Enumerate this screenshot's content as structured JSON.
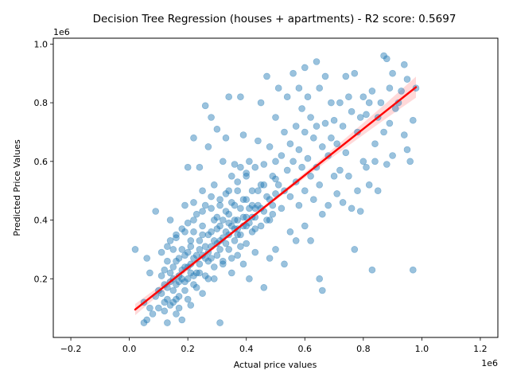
{
  "chart_data": {
    "type": "scatter",
    "title": "Decision Tree Regression (houses + apartments) - R2 score: 0.5697",
    "xlabel": "Actual price values",
    "ylabel": "Predicted Price Values",
    "x_offset_label": "1e6",
    "y_offset_label": "1e6",
    "xlim": [
      -0.26,
      1.26
    ],
    "ylim": [
      0.0,
      1.02
    ],
    "x_scale": 1000000,
    "y_scale": 1000000,
    "xticks": [
      -0.2,
      0.0,
      0.2,
      0.4,
      0.6,
      0.8,
      1.0,
      1.2
    ],
    "xtick_labels": [
      "−0.2",
      "0.0",
      "0.2",
      "0.4",
      "0.6",
      "0.8",
      "1.0",
      "1.2"
    ],
    "yticks": [
      0.2,
      0.4,
      0.6,
      0.8,
      1.0
    ],
    "ytick_labels": [
      "0.2",
      "0.4",
      "0.6",
      "0.8",
      "1.0"
    ],
    "grid": false,
    "point_color": "#1f77b4",
    "point_opacity": 0.45,
    "regression_line": {
      "x": [
        0.02,
        0.98
      ],
      "y": [
        0.095,
        0.853
      ],
      "color": "#ff0000"
    },
    "confidence_band_color": "#ff0000",
    "series": [
      {
        "points": [
          [
            0.02,
            0.3
          ],
          [
            0.05,
            0.12
          ],
          [
            0.05,
            0.05
          ],
          [
            0.06,
            0.27
          ],
          [
            0.06,
            0.06
          ],
          [
            0.07,
            0.22
          ],
          [
            0.07,
            0.1
          ],
          [
            0.08,
            0.08
          ],
          [
            0.09,
            0.43
          ],
          [
            0.09,
            0.14
          ],
          [
            0.1,
            0.16
          ],
          [
            0.1,
            0.1
          ],
          [
            0.11,
            0.29
          ],
          [
            0.11,
            0.21
          ],
          [
            0.12,
            0.23
          ],
          [
            0.12,
            0.12
          ],
          [
            0.13,
            0.05
          ],
          [
            0.13,
            0.26
          ],
          [
            0.13,
            0.17
          ],
          [
            0.14,
            0.4
          ],
          [
            0.14,
            0.33
          ],
          [
            0.14,
            0.19
          ],
          [
            0.15,
            0.3
          ],
          [
            0.15,
            0.12
          ],
          [
            0.15,
            0.24
          ],
          [
            0.16,
            0.35
          ],
          [
            0.16,
            0.18
          ],
          [
            0.16,
            0.08
          ],
          [
            0.17,
            0.27
          ],
          [
            0.17,
            0.14
          ],
          [
            0.17,
            0.21
          ],
          [
            0.18,
            0.37
          ],
          [
            0.18,
            0.3
          ],
          [
            0.18,
            0.06
          ],
          [
            0.19,
            0.45
          ],
          [
            0.19,
            0.24
          ],
          [
            0.19,
            0.16
          ],
          [
            0.2,
            0.58
          ],
          [
            0.2,
            0.39
          ],
          [
            0.2,
            0.29
          ],
          [
            0.2,
            0.2
          ],
          [
            0.21,
            0.33
          ],
          [
            0.21,
            0.11
          ],
          [
            0.21,
            0.25
          ],
          [
            0.22,
            0.68
          ],
          [
            0.22,
            0.46
          ],
          [
            0.22,
            0.36
          ],
          [
            0.22,
            0.18
          ],
          [
            0.23,
            0.28
          ],
          [
            0.23,
            0.42
          ],
          [
            0.24,
            0.58
          ],
          [
            0.24,
            0.22
          ],
          [
            0.24,
            0.33
          ],
          [
            0.25,
            0.5
          ],
          [
            0.25,
            0.38
          ],
          [
            0.25,
            0.15
          ],
          [
            0.26,
            0.79
          ],
          [
            0.26,
            0.45
          ],
          [
            0.26,
            0.27
          ],
          [
            0.27,
            0.35
          ],
          [
            0.27,
            0.65
          ],
          [
            0.27,
            0.2
          ],
          [
            0.28,
            0.75
          ],
          [
            0.28,
            0.48
          ],
          [
            0.28,
            0.31
          ],
          [
            0.29,
            0.4
          ],
          [
            0.29,
            0.24
          ],
          [
            0.29,
            0.52
          ],
          [
            0.3,
            0.71
          ],
          [
            0.3,
            0.37
          ],
          [
            0.3,
            0.28
          ],
          [
            0.31,
            0.45
          ],
          [
            0.31,
            0.05
          ],
          [
            0.31,
            0.33
          ],
          [
            0.32,
            0.6
          ],
          [
            0.32,
            0.4
          ],
          [
            0.32,
            0.26
          ],
          [
            0.33,
            0.68
          ],
          [
            0.33,
            0.49
          ],
          [
            0.33,
            0.36
          ],
          [
            0.34,
            0.82
          ],
          [
            0.34,
            0.3
          ],
          [
            0.34,
            0.42
          ],
          [
            0.35,
            0.55
          ],
          [
            0.35,
            0.38
          ],
          [
            0.35,
            0.22
          ],
          [
            0.36,
            0.59
          ],
          [
            0.36,
            0.45
          ],
          [
            0.36,
            0.33
          ],
          [
            0.37,
            0.5
          ],
          [
            0.37,
            0.28
          ],
          [
            0.37,
            0.4
          ],
          [
            0.38,
            0.82
          ],
          [
            0.38,
            0.58
          ],
          [
            0.38,
            0.35
          ],
          [
            0.39,
            0.69
          ],
          [
            0.39,
            0.47
          ],
          [
            0.39,
            0.25
          ],
          [
            0.4,
            0.55
          ],
          [
            0.4,
            0.41
          ],
          [
            0.4,
            0.32
          ],
          [
            0.41,
            0.6
          ],
          [
            0.41,
            0.44
          ],
          [
            0.41,
            0.2
          ],
          [
            0.42,
            0.5
          ],
          [
            0.42,
            0.36
          ],
          [
            0.43,
            0.58
          ],
          [
            0.43,
            0.41
          ],
          [
            0.43,
            0.29
          ],
          [
            0.44,
            0.67
          ],
          [
            0.44,
            0.45
          ],
          [
            0.45,
            0.8
          ],
          [
            0.45,
            0.52
          ],
          [
            0.45,
            0.38
          ],
          [
            0.46,
            0.59
          ],
          [
            0.46,
            0.43
          ],
          [
            0.46,
            0.17
          ],
          [
            0.47,
            0.89
          ],
          [
            0.47,
            0.48
          ],
          [
            0.48,
            0.65
          ],
          [
            0.48,
            0.4
          ],
          [
            0.48,
            0.27
          ],
          [
            0.49,
            0.55
          ],
          [
            0.49,
            0.45
          ],
          [
            0.5,
            0.75
          ],
          [
            0.5,
            0.6
          ],
          [
            0.5,
            0.49
          ],
          [
            0.5,
            0.3
          ],
          [
            0.51,
            0.85
          ],
          [
            0.51,
            0.52
          ],
          [
            0.52,
            0.62
          ],
          [
            0.52,
            0.44
          ],
          [
            0.53,
            0.7
          ],
          [
            0.53,
            0.5
          ],
          [
            0.53,
            0.25
          ],
          [
            0.54,
            0.82
          ],
          [
            0.54,
            0.57
          ],
          [
            0.55,
            0.66
          ],
          [
            0.55,
            0.48
          ],
          [
            0.55,
            0.36
          ],
          [
            0.56,
            0.9
          ],
          [
            0.56,
            0.6
          ],
          [
            0.57,
            0.72
          ],
          [
            0.57,
            0.53
          ],
          [
            0.57,
            0.33
          ],
          [
            0.58,
            0.85
          ],
          [
            0.58,
            0.64
          ],
          [
            0.58,
            0.45
          ],
          [
            0.59,
            0.78
          ],
          [
            0.59,
            0.58
          ],
          [
            0.6,
            0.92
          ],
          [
            0.6,
            0.7
          ],
          [
            0.6,
            0.5
          ],
          [
            0.6,
            0.38
          ],
          [
            0.61,
            0.82
          ],
          [
            0.61,
            0.61
          ],
          [
            0.62,
            0.75
          ],
          [
            0.62,
            0.55
          ],
          [
            0.62,
            0.33
          ],
          [
            0.63,
            0.68
          ],
          [
            0.63,
            0.47
          ],
          [
            0.64,
            0.94
          ],
          [
            0.64,
            0.72
          ],
          [
            0.64,
            0.58
          ],
          [
            0.65,
            0.85
          ],
          [
            0.65,
            0.52
          ],
          [
            0.65,
            0.2
          ],
          [
            0.66,
            0.65
          ],
          [
            0.66,
            0.42
          ],
          [
            0.66,
            0.16
          ],
          [
            0.67,
            0.89
          ],
          [
            0.67,
            0.73
          ],
          [
            0.68,
            0.62
          ],
          [
            0.68,
            0.45
          ],
          [
            0.69,
            0.8
          ],
          [
            0.69,
            0.68
          ],
          [
            0.7,
            0.74
          ],
          [
            0.7,
            0.55
          ],
          [
            0.71,
            0.66
          ],
          [
            0.71,
            0.49
          ],
          [
            0.72,
            0.8
          ],
          [
            0.72,
            0.57
          ],
          [
            0.73,
            0.72
          ],
          [
            0.73,
            0.46
          ],
          [
            0.74,
            0.89
          ],
          [
            0.74,
            0.63
          ],
          [
            0.75,
            0.82
          ],
          [
            0.75,
            0.55
          ],
          [
            0.76,
            0.77
          ],
          [
            0.76,
            0.44
          ],
          [
            0.77,
            0.9
          ],
          [
            0.77,
            0.3
          ],
          [
            0.78,
            0.7
          ],
          [
            0.78,
            0.5
          ],
          [
            0.79,
            0.75
          ],
          [
            0.79,
            0.43
          ],
          [
            0.8,
            0.82
          ],
          [
            0.8,
            0.6
          ],
          [
            0.81,
            0.76
          ],
          [
            0.81,
            0.58
          ],
          [
            0.82,
            0.8
          ],
          [
            0.82,
            0.52
          ],
          [
            0.83,
            0.84
          ],
          [
            0.83,
            0.23
          ],
          [
            0.84,
            0.66
          ],
          [
            0.84,
            0.6
          ],
          [
            0.85,
            0.75
          ],
          [
            0.85,
            0.5
          ],
          [
            0.86,
            0.8
          ],
          [
            0.87,
            0.96
          ],
          [
            0.87,
            0.7
          ],
          [
            0.88,
            0.95
          ],
          [
            0.88,
            0.59
          ],
          [
            0.89,
            0.85
          ],
          [
            0.89,
            0.73
          ],
          [
            0.9,
            0.9
          ],
          [
            0.9,
            0.62
          ],
          [
            0.91,
            0.78
          ],
          [
            0.92,
            0.8
          ],
          [
            0.93,
            0.84
          ],
          [
            0.94,
            0.93
          ],
          [
            0.94,
            0.69
          ],
          [
            0.95,
            0.88
          ],
          [
            0.95,
            0.64
          ],
          [
            0.96,
            0.6
          ],
          [
            0.97,
            0.74
          ],
          [
            0.97,
            0.23
          ],
          [
            0.98,
            0.85
          ],
          [
            0.11,
            0.15
          ],
          [
            0.12,
            0.18
          ],
          [
            0.13,
            0.13
          ],
          [
            0.14,
            0.22
          ],
          [
            0.15,
            0.16
          ],
          [
            0.16,
            0.26
          ],
          [
            0.17,
            0.19
          ],
          [
            0.18,
            0.23
          ],
          [
            0.19,
            0.28
          ],
          [
            0.2,
            0.24
          ],
          [
            0.21,
            0.31
          ],
          [
            0.22,
            0.27
          ],
          [
            0.23,
            0.22
          ],
          [
            0.24,
            0.3
          ],
          [
            0.25,
            0.35
          ],
          [
            0.26,
            0.31
          ],
          [
            0.27,
            0.26
          ],
          [
            0.28,
            0.36
          ],
          [
            0.29,
            0.33
          ],
          [
            0.3,
            0.41
          ],
          [
            0.31,
            0.38
          ],
          [
            0.32,
            0.34
          ],
          [
            0.33,
            0.43
          ],
          [
            0.34,
            0.39
          ],
          [
            0.35,
            0.46
          ],
          [
            0.36,
            0.4
          ],
          [
            0.37,
            0.35
          ],
          [
            0.38,
            0.44
          ],
          [
            0.39,
            0.38
          ],
          [
            0.4,
            0.47
          ],
          [
            0.41,
            0.39
          ],
          [
            0.42,
            0.45
          ],
          [
            0.43,
            0.37
          ],
          [
            0.44,
            0.5
          ],
          [
            0.45,
            0.44
          ],
          [
            0.46,
            0.52
          ],
          [
            0.47,
            0.4
          ],
          [
            0.48,
            0.47
          ],
          [
            0.49,
            0.42
          ],
          [
            0.5,
            0.54
          ],
          [
            0.15,
            0.2
          ],
          [
            0.18,
            0.2
          ],
          [
            0.21,
            0.22
          ],
          [
            0.24,
            0.25
          ],
          [
            0.27,
            0.29
          ],
          [
            0.3,
            0.32
          ],
          [
            0.33,
            0.32
          ],
          [
            0.36,
            0.37
          ],
          [
            0.39,
            0.41
          ],
          [
            0.42,
            0.41
          ],
          [
            0.16,
            0.13
          ],
          [
            0.19,
            0.19
          ],
          [
            0.22,
            0.21
          ],
          [
            0.25,
            0.28
          ],
          [
            0.28,
            0.27
          ],
          [
            0.31,
            0.3
          ],
          [
            0.34,
            0.35
          ],
          [
            0.37,
            0.37
          ],
          [
            0.4,
            0.38
          ],
          [
            0.43,
            0.44
          ],
          [
            0.12,
            0.09
          ],
          [
            0.14,
            0.11
          ],
          [
            0.17,
            0.1
          ],
          [
            0.2,
            0.13
          ],
          [
            0.23,
            0.17
          ],
          [
            0.26,
            0.21
          ],
          [
            0.29,
            0.2
          ],
          [
            0.32,
            0.25
          ],
          [
            0.35,
            0.27
          ],
          [
            0.38,
            0.31
          ],
          [
            0.13,
            0.31
          ],
          [
            0.16,
            0.34
          ],
          [
            0.19,
            0.36
          ],
          [
            0.22,
            0.4
          ],
          [
            0.25,
            0.43
          ],
          [
            0.28,
            0.44
          ],
          [
            0.31,
            0.47
          ],
          [
            0.34,
            0.5
          ],
          [
            0.37,
            0.53
          ],
          [
            0.4,
            0.56
          ]
        ]
      }
    ]
  }
}
